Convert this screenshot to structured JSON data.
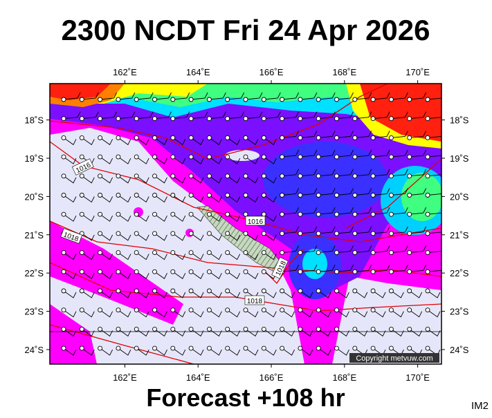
{
  "header": {
    "title": "2300 NCDT Fri 24 Apr 2026"
  },
  "map": {
    "lon_range": [
      159.95,
      170.65
    ],
    "lat_range": [
      17.05,
      24.38
    ],
    "lon_ticks": [
      {
        "value": 162,
        "label": "162˚E"
      },
      {
        "value": 164,
        "label": "164˚E"
      },
      {
        "value": 166,
        "label": "166˚E"
      },
      {
        "value": 168,
        "label": "168˚E"
      },
      {
        "value": 170,
        "label": "170˚E"
      }
    ],
    "lat_ticks": [
      {
        "value": 18,
        "label": "18˚S"
      },
      {
        "value": 19,
        "label": "19˚S"
      },
      {
        "value": 20,
        "label": "20˚S"
      },
      {
        "value": 21,
        "label": "21˚S"
      },
      {
        "value": 22,
        "label": "22˚S"
      },
      {
        "value": 23,
        "label": "23˚S"
      },
      {
        "value": 24,
        "label": "24˚S"
      }
    ],
    "isobar_labels": [
      "1016",
      "1016",
      "1018",
      "1018",
      "1018"
    ],
    "copyright": "Copyright metvuw.com"
  },
  "footer": {
    "forecast": "Forecast +108 hr",
    "code": "IM2"
  }
}
